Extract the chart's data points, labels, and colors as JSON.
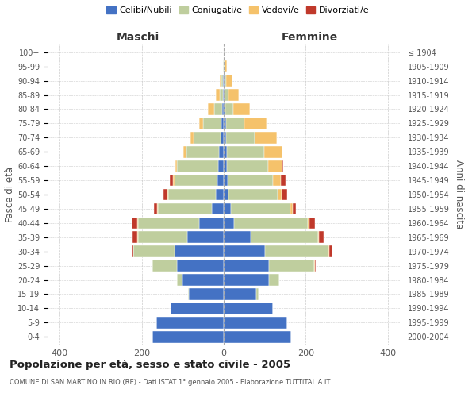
{
  "age_groups_bottom_to_top": [
    "0-4",
    "5-9",
    "10-14",
    "15-19",
    "20-24",
    "25-29",
    "30-34",
    "35-39",
    "40-44",
    "45-49",
    "50-54",
    "55-59",
    "60-64",
    "65-69",
    "70-74",
    "75-79",
    "80-84",
    "85-89",
    "90-94",
    "95-99",
    "100+"
  ],
  "birth_years_bottom_to_top": [
    "2000-2004",
    "1995-1999",
    "1990-1994",
    "1985-1989",
    "1980-1984",
    "1975-1979",
    "1970-1974",
    "1965-1969",
    "1960-1964",
    "1955-1959",
    "1950-1954",
    "1945-1949",
    "1940-1944",
    "1935-1939",
    "1930-1934",
    "1925-1929",
    "1920-1924",
    "1915-1919",
    "1910-1914",
    "1905-1909",
    "≤ 1904"
  ],
  "maschi": {
    "celibi": [
      175,
      165,
      130,
      85,
      100,
      115,
      120,
      90,
      60,
      30,
      20,
      15,
      14,
      12,
      8,
      5,
      3,
      2,
      1,
      0,
      0
    ],
    "coniugati": [
      0,
      0,
      0,
      2,
      15,
      60,
      100,
      120,
      150,
      130,
      115,
      105,
      100,
      80,
      65,
      45,
      20,
      8,
      4,
      1,
      0
    ],
    "vedovi": [
      0,
      0,
      0,
      0,
      0,
      0,
      0,
      2,
      2,
      2,
      2,
      3,
      4,
      6,
      8,
      10,
      15,
      10,
      5,
      1,
      0
    ],
    "divorziati": [
      0,
      0,
      0,
      0,
      0,
      2,
      5,
      10,
      12,
      8,
      10,
      8,
      2,
      0,
      0,
      0,
      0,
      0,
      0,
      0,
      0
    ]
  },
  "femmine": {
    "nubili": [
      165,
      155,
      120,
      80,
      110,
      110,
      100,
      65,
      25,
      18,
      12,
      10,
      8,
      8,
      5,
      5,
      3,
      2,
      1,
      0,
      0
    ],
    "coniugate": [
      0,
      0,
      1,
      5,
      25,
      110,
      155,
      165,
      180,
      145,
      120,
      110,
      100,
      90,
      70,
      45,
      20,
      10,
      5,
      2,
      0
    ],
    "vedove": [
      0,
      0,
      0,
      0,
      0,
      2,
      3,
      3,
      5,
      5,
      10,
      20,
      35,
      45,
      55,
      55,
      40,
      25,
      15,
      5,
      0
    ],
    "divorziate": [
      0,
      0,
      0,
      0,
      0,
      3,
      8,
      12,
      12,
      8,
      12,
      12,
      2,
      1,
      0,
      0,
      0,
      0,
      0,
      0,
      0
    ]
  },
  "colors": {
    "celibi_nubili": "#4472C4",
    "coniugati": "#BFCE9E",
    "vedovi": "#F5C26B",
    "divorziati": "#C0392B"
  },
  "xlim": [
    -430,
    430
  ],
  "xticks": [
    -400,
    -200,
    0,
    200,
    400
  ],
  "xticklabels": [
    "400",
    "200",
    "0",
    "200",
    "400"
  ],
  "title": "Popolazione per età, sesso e stato civile - 2005",
  "subtitle": "COMUNE DI SAN MARTINO IN RIO (RE) - Dati ISTAT 1° gennaio 2005 - Elaborazione TUTTITALIA.IT",
  "ylabel_left": "Fasce di età",
  "ylabel_right": "Anni di nascita",
  "label_maschi": "Maschi",
  "label_femmine": "Femmine",
  "legend_labels": [
    "Celibi/Nubili",
    "Coniugati/e",
    "Vedovi/e",
    "Divorziati/e"
  ],
  "background_color": "#FFFFFF",
  "grid_color": "#CCCCCC"
}
